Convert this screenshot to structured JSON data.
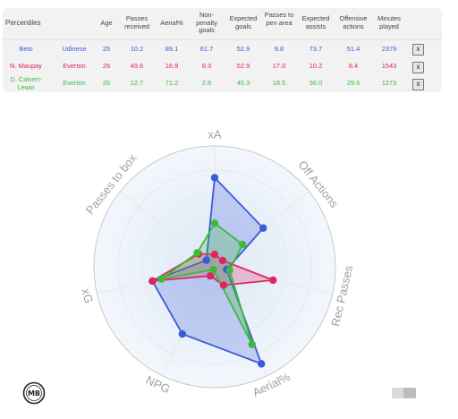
{
  "table": {
    "headers": {
      "name": "Percentiles",
      "age": "Age",
      "passes_received": "Passes received",
      "aerial": "Aerial%",
      "npg": "Non- penalty goals",
      "xg": "Expected goals",
      "passes_pen": "Passes to pen area",
      "xa": "Expected assists",
      "off_actions": "Offensive actions",
      "minutes": "Minutes played"
    },
    "rows": [
      {
        "name": "Beto",
        "team": "Udinese",
        "age": "25",
        "passes_received": "10.2",
        "aerial": "89.1",
        "npg": "61.7",
        "xg": "52.9",
        "passes_pen": "8.8",
        "xa": "73.7",
        "off_actions": "51.4",
        "minutes": "2379",
        "remove_label": "x",
        "color": "#3a5bd9"
      },
      {
        "name": "N. Maupay",
        "team": "Everton",
        "age": "26",
        "passes_received": "49.6",
        "aerial": "16.9",
        "npg": "8.3",
        "xg": "52.9",
        "passes_pen": "17.0",
        "xa": "10.2",
        "off_actions": "8.4",
        "minutes": "1543",
        "remove_label": "x",
        "color": "#e0245e"
      },
      {
        "name": "D. Calvert-Lewin",
        "team": "Everton",
        "age": "26",
        "passes_received": "12.7",
        "aerial": "71.2",
        "npg": "2.6",
        "xg": "45.3",
        "passes_pen": "18.5",
        "xa": "36.0",
        "off_actions": "29.6",
        "minutes": "1273",
        "remove_label": "x",
        "color": "#3cba3c"
      }
    ]
  },
  "chart_data": {
    "type": "radar",
    "axes": [
      "xA",
      "Off Actions",
      "Rec Passes",
      "Aerial%",
      "NPG",
      "xG",
      "Passes to box"
    ],
    "range": [
      0,
      100
    ],
    "series": [
      {
        "name": "Beto",
        "color": "#3a5bd9",
        "values": [
          73.7,
          51.4,
          10.2,
          89.1,
          61.7,
          52.9,
          8.8
        ]
      },
      {
        "name": "N. Maupay",
        "color": "#e0245e",
        "values": [
          10.2,
          8.4,
          49.6,
          16.9,
          8.3,
          52.9,
          17.0
        ]
      },
      {
        "name": "D. Calvert-Lewin",
        "color": "#3cba3c",
        "values": [
          36.0,
          29.6,
          12.7,
          71.2,
          2.6,
          45.3,
          18.5
        ]
      }
    ]
  },
  "logo_text": "MB"
}
